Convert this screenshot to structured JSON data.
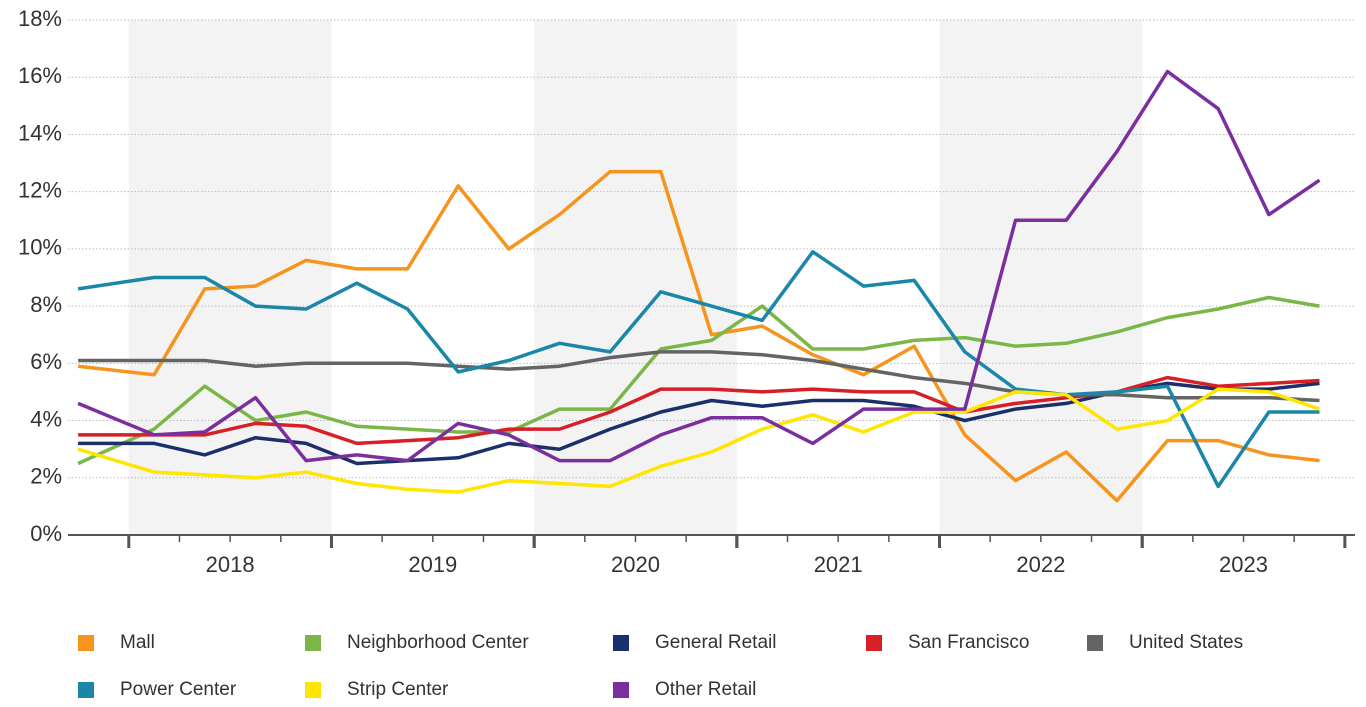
{
  "chart_data": {
    "type": "line",
    "x": [
      2017.75,
      2018.125,
      2018.375,
      2018.625,
      2018.875,
      2019.125,
      2019.375,
      2019.625,
      2019.875,
      2020.125,
      2020.375,
      2020.625,
      2020.875,
      2021.125,
      2021.375,
      2021.625,
      2021.875,
      2022.125,
      2022.375,
      2022.625,
      2022.875,
      2023.125,
      2023.375,
      2023.625,
      2023.875
    ],
    "xlim": [
      2017.7,
      2024.05
    ],
    "xticks": [
      {
        "value": 2018.5,
        "label": "2018"
      },
      {
        "value": 2019.5,
        "label": "2019"
      },
      {
        "value": 2020.5,
        "label": "2020"
      },
      {
        "value": 2021.5,
        "label": "2021"
      },
      {
        "value": 2022.5,
        "label": "2022"
      },
      {
        "value": 2023.5,
        "label": "2023"
      }
    ],
    "ylim": [
      0,
      18
    ],
    "yticks": [
      {
        "value": 0,
        "label": "0%"
      },
      {
        "value": 2,
        "label": "2%"
      },
      {
        "value": 4,
        "label": "4%"
      },
      {
        "value": 6,
        "label": "6%"
      },
      {
        "value": 8,
        "label": "8%"
      },
      {
        "value": 10,
        "label": "10%"
      },
      {
        "value": 12,
        "label": "12%"
      },
      {
        "value": 14,
        "label": "14%"
      },
      {
        "value": 16,
        "label": "16%"
      },
      {
        "value": 18,
        "label": "18%"
      }
    ],
    "grid": true,
    "legend": "bottom",
    "series": [
      {
        "name": "Mall",
        "color": "#f7941d",
        "values": [
          5.9,
          5.6,
          8.6,
          8.7,
          9.6,
          9.3,
          9.3,
          12.2,
          10.0,
          11.2,
          12.7,
          12.7,
          7.0,
          7.3,
          6.3,
          5.6,
          6.6,
          3.5,
          1.9,
          2.9,
          1.2,
          3.3,
          3.3,
          2.8,
          2.6
        ]
      },
      {
        "name": "Neighborhood Center",
        "color": "#7ab648",
        "values": [
          2.5,
          3.7,
          5.2,
          4.0,
          4.3,
          3.8,
          3.7,
          3.6,
          3.6,
          4.4,
          4.4,
          6.5,
          6.8,
          8.0,
          6.5,
          6.5,
          6.8,
          6.9,
          6.6,
          6.7,
          7.1,
          7.6,
          7.9,
          8.3,
          8.0
        ]
      },
      {
        "name": "General Retail",
        "color": "#1b2f6b",
        "values": [
          3.2,
          3.2,
          2.8,
          3.4,
          3.2,
          2.5,
          2.6,
          2.7,
          3.2,
          3.0,
          3.7,
          4.3,
          4.7,
          4.5,
          4.7,
          4.7,
          4.5,
          4.0,
          4.4,
          4.6,
          5.0,
          5.3,
          5.1,
          5.1,
          5.3
        ]
      },
      {
        "name": "San Francisco",
        "color": "#d71f26",
        "values": [
          3.5,
          3.5,
          3.5,
          3.9,
          3.8,
          3.2,
          3.3,
          3.4,
          3.7,
          3.7,
          4.3,
          5.1,
          5.1,
          5.0,
          5.1,
          5.0,
          5.0,
          4.3,
          4.6,
          4.8,
          5.0,
          5.5,
          5.2,
          5.3,
          5.4
        ]
      },
      {
        "name": "United States",
        "color": "#636466",
        "values": [
          6.1,
          6.1,
          6.1,
          5.9,
          6.0,
          6.0,
          6.0,
          5.9,
          5.8,
          5.9,
          6.2,
          6.4,
          6.4,
          6.3,
          6.1,
          5.8,
          5.5,
          5.3,
          5.0,
          4.9,
          4.9,
          4.8,
          4.8,
          4.8,
          4.7
        ]
      },
      {
        "name": "Power Center",
        "color": "#1a87a8",
        "values": [
          8.6,
          9.0,
          9.0,
          8.0,
          7.9,
          8.8,
          7.9,
          5.7,
          6.1,
          6.7,
          6.4,
          8.5,
          8.0,
          7.5,
          9.9,
          8.7,
          8.9,
          6.4,
          5.1,
          4.9,
          5.0,
          5.2,
          1.7,
          4.3,
          4.3
        ]
      },
      {
        "name": "Strip Center",
        "color": "#ffe600",
        "values": [
          3.0,
          2.2,
          2.1,
          2.0,
          2.2,
          1.8,
          1.6,
          1.5,
          1.9,
          1.8,
          1.7,
          2.4,
          2.9,
          3.7,
          4.2,
          3.6,
          4.3,
          4.3,
          5.0,
          4.9,
          3.7,
          4.0,
          5.1,
          5.0,
          4.4
        ]
      },
      {
        "name": "Other Retail",
        "color": "#7b2f9e",
        "values": [
          4.6,
          3.5,
          3.6,
          4.8,
          2.6,
          2.8,
          2.6,
          3.9,
          3.5,
          2.6,
          2.6,
          3.5,
          4.1,
          4.1,
          3.2,
          4.4,
          4.4,
          4.4,
          11.0,
          11.0,
          13.4,
          16.2,
          14.9,
          11.2,
          12.4
        ]
      }
    ]
  }
}
